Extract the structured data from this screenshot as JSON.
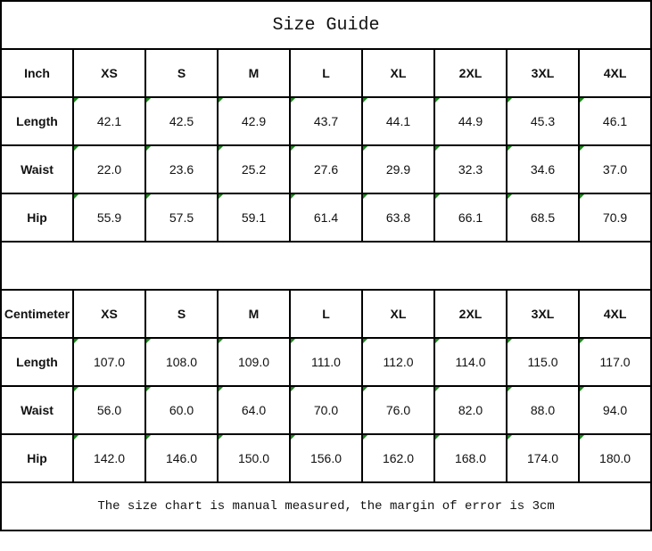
{
  "title": "Size Guide",
  "sizes": [
    "XS",
    "S",
    "M",
    "L",
    "XL",
    "2XL",
    "3XL",
    "4XL"
  ],
  "inch": {
    "unit_label": "Inch",
    "rows": [
      {
        "label": "Length",
        "values": [
          "42.1",
          "42.5",
          "42.9",
          "43.7",
          "44.1",
          "44.9",
          "45.3",
          "46.1"
        ]
      },
      {
        "label": "Waist",
        "values": [
          "22.0",
          "23.6",
          "25.2",
          "27.6",
          "29.9",
          "32.3",
          "34.6",
          "37.0"
        ]
      },
      {
        "label": "Hip",
        "values": [
          "55.9",
          "57.5",
          "59.1",
          "61.4",
          "63.8",
          "66.1",
          "68.5",
          "70.9"
        ]
      }
    ]
  },
  "centimeter": {
    "unit_label": "Centimeter",
    "rows": [
      {
        "label": "Length",
        "values": [
          "107.0",
          "108.0",
          "109.0",
          "111.0",
          "112.0",
          "114.0",
          "115.0",
          "117.0"
        ]
      },
      {
        "label": "Waist",
        "values": [
          "56.0",
          "60.0",
          "64.0",
          "70.0",
          "76.0",
          "82.0",
          "88.0",
          "94.0"
        ]
      },
      {
        "label": "Hip",
        "values": [
          "142.0",
          "146.0",
          "150.0",
          "156.0",
          "162.0",
          "168.0",
          "174.0",
          "180.0"
        ]
      }
    ]
  },
  "note": "The size chart is manual measured, the margin of error is 3cm",
  "colors": {
    "border": "#000000",
    "cell_marker": "#1a8a1a"
  }
}
